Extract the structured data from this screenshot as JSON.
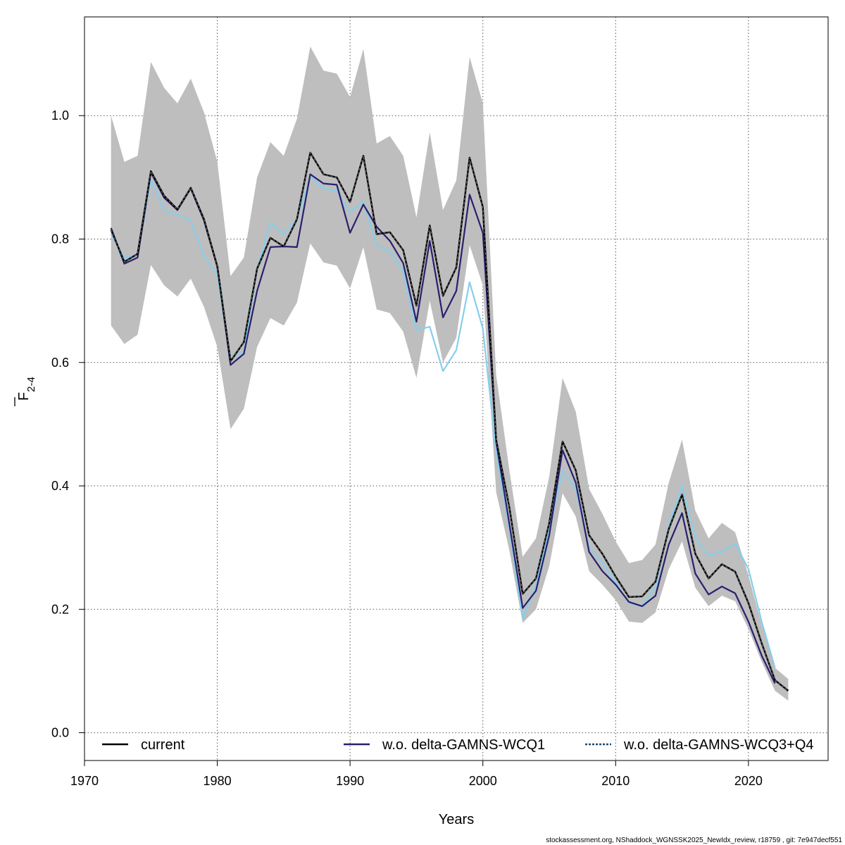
{
  "chart_data": {
    "type": "line",
    "xlabel": "Years",
    "ylabel_main": "F",
    "ylabel_sub": "2-4",
    "xlim": [
      1970,
      2026
    ],
    "ylim": [
      -0.045,
      1.16
    ],
    "x_ticks": [
      1970,
      1980,
      1990,
      2000,
      2010,
      2020
    ],
    "y_ticks": [
      0.0,
      0.2,
      0.4,
      0.6,
      0.8,
      1.0
    ],
    "y_tick_labels": [
      "0.0",
      "0.2",
      "0.4",
      "0.6",
      "0.8",
      "1.0"
    ],
    "grid": true,
    "legend_position": "bottom",
    "colors": {
      "band": "#bebebe",
      "current": "#000000",
      "wcq1": "#2a1f6e",
      "wcq34": "#87ceeb"
    },
    "x": [
      1972,
      1973,
      1974,
      1975,
      1976,
      1977,
      1978,
      1979,
      1980,
      1981,
      1982,
      1983,
      1984,
      1985,
      1986,
      1987,
      1988,
      1989,
      1990,
      1991,
      1992,
      1993,
      1994,
      1995,
      1996,
      1997,
      1998,
      1999,
      2000,
      2001,
      2002,
      2003,
      2004,
      2005,
      2006,
      2007,
      2008,
      2009,
      2010,
      2011,
      2012,
      2013,
      2014,
      2015,
      2016,
      2017,
      2018,
      2019,
      2020,
      2021,
      2022,
      2023
    ],
    "band_upper": [
      1.0,
      0.925,
      0.935,
      1.087,
      1.045,
      1.02,
      1.06,
      1.005,
      0.925,
      0.74,
      0.77,
      0.9,
      0.957,
      0.935,
      0.995,
      1.112,
      1.073,
      1.068,
      1.03,
      1.108,
      0.955,
      0.967,
      0.935,
      0.835,
      0.973,
      0.847,
      0.895,
      1.095,
      1.02,
      0.58,
      0.425,
      0.285,
      0.315,
      0.415,
      0.575,
      0.52,
      0.395,
      0.355,
      0.31,
      0.275,
      0.28,
      0.305,
      0.405,
      0.475,
      0.36,
      0.315,
      0.34,
      0.325,
      0.255,
      0.175,
      0.105,
      0.087
    ],
    "band_lower": [
      0.66,
      0.63,
      0.645,
      0.758,
      0.725,
      0.707,
      0.736,
      0.69,
      0.625,
      0.492,
      0.525,
      0.625,
      0.672,
      0.66,
      0.697,
      0.793,
      0.762,
      0.757,
      0.72,
      0.787,
      0.686,
      0.68,
      0.65,
      0.575,
      0.7,
      0.6,
      0.64,
      0.79,
      0.725,
      0.39,
      0.295,
      0.178,
      0.2,
      0.27,
      0.388,
      0.35,
      0.262,
      0.24,
      0.215,
      0.18,
      0.178,
      0.195,
      0.265,
      0.31,
      0.235,
      0.205,
      0.222,
      0.213,
      0.168,
      0.115,
      0.068,
      0.052
    ],
    "series": [
      {
        "name": "current",
        "values": [
          0.815,
          0.763,
          0.776,
          0.91,
          0.87,
          0.848,
          0.883,
          0.832,
          0.756,
          0.602,
          0.633,
          0.752,
          0.802,
          0.788,
          0.832,
          0.94,
          0.905,
          0.9,
          0.86,
          0.935,
          0.808,
          0.811,
          0.782,
          0.692,
          0.822,
          0.708,
          0.754,
          0.932,
          0.852,
          0.475,
          0.365,
          0.225,
          0.25,
          0.34,
          0.472,
          0.425,
          0.32,
          0.29,
          0.253,
          0.22,
          0.221,
          0.245,
          0.33,
          0.386,
          0.29,
          0.25,
          0.273,
          0.261,
          0.21,
          0.145,
          0.085,
          0.068
        ]
      },
      {
        "name": "w.o. delta-GAMNS-WCQ1",
        "values": [
          0.818,
          0.76,
          0.77,
          0.908,
          0.867,
          0.847,
          0.882,
          0.83,
          0.755,
          0.596,
          0.614,
          0.716,
          0.787,
          0.788,
          0.787,
          0.905,
          0.89,
          0.888,
          0.81,
          0.856,
          0.82,
          0.797,
          0.761,
          0.666,
          0.797,
          0.673,
          0.716,
          0.872,
          0.81,
          0.472,
          0.338,
          0.202,
          0.23,
          0.32,
          0.458,
          0.405,
          0.293,
          0.262,
          0.24,
          0.212,
          0.205,
          0.222,
          0.305,
          0.356,
          0.258,
          0.224,
          0.237,
          0.226,
          0.18,
          0.125,
          0.08,
          null
        ]
      },
      {
        "name": "w.o. delta-GAMNS-WCQ3+Q4",
        "values": [
          0.808,
          0.77,
          0.775,
          0.897,
          0.846,
          0.84,
          0.83,
          0.773,
          0.742,
          0.606,
          0.618,
          0.752,
          0.826,
          0.808,
          0.832,
          0.901,
          0.882,
          0.878,
          0.843,
          0.861,
          0.79,
          0.78,
          0.748,
          0.652,
          0.658,
          0.586,
          0.62,
          0.73,
          0.655,
          0.455,
          0.33,
          0.185,
          0.24,
          0.33,
          0.424,
          0.395,
          0.3,
          0.276,
          0.243,
          0.21,
          0.206,
          0.236,
          0.335,
          0.4,
          0.315,
          0.288,
          0.293,
          0.307,
          0.265,
          0.18,
          0.105,
          null
        ]
      }
    ]
  },
  "footer_text": "stockassessment.org, NShaddock_WGNSSK2025_NewIdx_review, r18759 , git: 7e947decf551"
}
